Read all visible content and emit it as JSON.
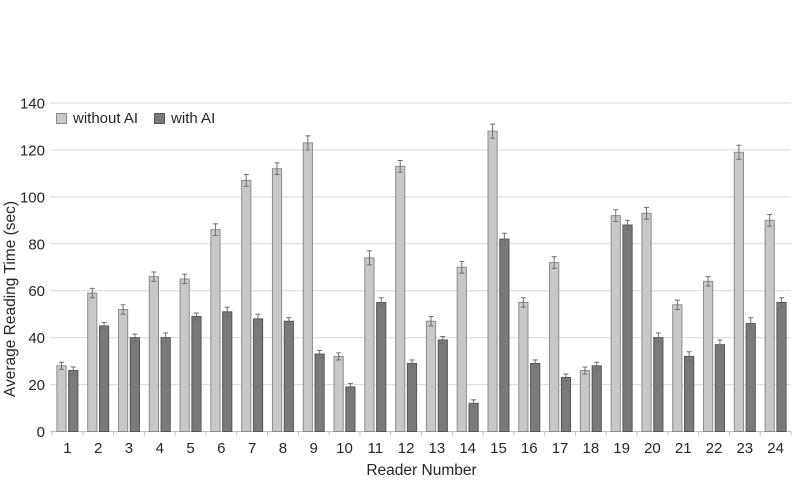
{
  "chart_data": {
    "type": "bar",
    "title": "",
    "xlabel": "Reader Number",
    "ylabel": "Average Reading Time (sec)",
    "ylim": [
      0,
      140
    ],
    "yticks": [
      0,
      20,
      40,
      60,
      80,
      100,
      120,
      140
    ],
    "grid": true,
    "legend_position": "top-left-inside",
    "error_bars": true,
    "categories": [
      "1",
      "2",
      "3",
      "4",
      "5",
      "6",
      "7",
      "8",
      "9",
      "10",
      "11",
      "12",
      "13",
      "14",
      "15",
      "16",
      "17",
      "18",
      "19",
      "20",
      "21",
      "22",
      "23",
      "24"
    ],
    "series": [
      {
        "name": "without AI",
        "fill": "#c8c8c8",
        "border": "#8c8c8c",
        "values": [
          28,
          59,
          52,
          66,
          65,
          86,
          107,
          112,
          123,
          32,
          74,
          113,
          47,
          70,
          128,
          55,
          72,
          26,
          92,
          93,
          54,
          64,
          119,
          90
        ],
        "errors": [
          1.5,
          2,
          2,
          2,
          2,
          2.5,
          2.5,
          2.5,
          3,
          1.5,
          3,
          2.5,
          2,
          2.5,
          3,
          2,
          2.5,
          1.5,
          2.5,
          2.5,
          2,
          2,
          3,
          2.5
        ]
      },
      {
        "name": "with AI",
        "fill": "#7a7a7a",
        "border": "#565656",
        "values": [
          26,
          45,
          40,
          40,
          49,
          51,
          48,
          47,
          33,
          19,
          55,
          29,
          39,
          12,
          82,
          29,
          23,
          28,
          88,
          40,
          32,
          37,
          46,
          55
        ],
        "errors": [
          1.5,
          1.5,
          1.5,
          2,
          1.5,
          2,
          2,
          1.5,
          1.5,
          1.5,
          2,
          1.5,
          1.5,
          1.5,
          2.5,
          1.5,
          1.5,
          1.5,
          2,
          2,
          2,
          2,
          2.5,
          2
        ]
      }
    ],
    "colors": {
      "gridline": "#d9d9d9",
      "axis_line": "#bfbfbf",
      "error_bar": "#6f6f6f",
      "text": "#262626",
      "background": "#ffffff"
    }
  }
}
